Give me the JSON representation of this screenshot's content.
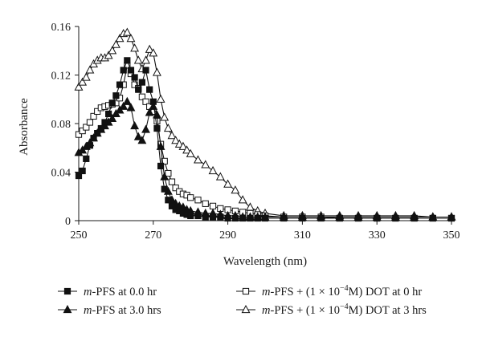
{
  "chart_data": {
    "type": "line",
    "title": "",
    "xlabel": "Wavelength (nm)",
    "ylabel": "Absorbance",
    "xlim": [
      250,
      350
    ],
    "ylim": [
      0,
      0.16
    ],
    "xticks": [
      "250",
      "270",
      "290",
      "310",
      "330",
      "350"
    ],
    "yticks": [
      "0",
      "0.04",
      "0.08",
      "0.12",
      "0.16"
    ],
    "grid": false,
    "legend_position": "bottom",
    "legend": [
      {
        "prefix": "m",
        "text": "-PFS at 0.0 hr"
      },
      {
        "prefix": "m",
        "text": "-PFS + (1 × 10",
        "sup": "−4",
        "suffix": "M) DOT at 0 hr"
      },
      {
        "prefix": "m",
        "text": "-PFS at 3.0 hrs"
      },
      {
        "prefix": "m",
        "text": "-PFS + (1 × 10",
        "sup": "−4",
        "suffix": "M) DOT at 3 hrs"
      }
    ],
    "series": [
      {
        "name": "m-PFS at 0.0 hr",
        "marker": "square-filled",
        "x": [
          250,
          251,
          252,
          253,
          254,
          255,
          256,
          257,
          258,
          259,
          260,
          261,
          262,
          263,
          264,
          265,
          266,
          267,
          268,
          269,
          270,
          271,
          272,
          273,
          274,
          275,
          276,
          277,
          278,
          279,
          280,
          282,
          284,
          286,
          288,
          290,
          292,
          294,
          296,
          298,
          300,
          305,
          310,
          315,
          320,
          325,
          330,
          335,
          340,
          345,
          350
        ],
        "y": [
          0.037,
          0.041,
          0.051,
          0.062,
          0.068,
          0.072,
          0.076,
          0.081,
          0.088,
          0.097,
          0.103,
          0.112,
          0.124,
          0.132,
          0.124,
          0.118,
          0.108,
          0.114,
          0.124,
          0.108,
          0.098,
          0.076,
          0.045,
          0.026,
          0.017,
          0.012,
          0.009,
          0.008,
          0.006,
          0.005,
          0.004,
          0.004,
          0.003,
          0.003,
          0.003,
          0.002,
          0.002,
          0.002,
          0.002,
          0.002,
          0.002,
          0.002,
          0.002,
          0.002,
          0.002,
          0.002,
          0.002,
          0.002,
          0.002,
          0.002,
          0.002
        ]
      },
      {
        "name": "m-PFS at 3.0 hrs",
        "marker": "triangle-filled",
        "x": [
          250,
          251,
          252,
          253,
          254,
          255,
          256,
          257,
          258,
          259,
          260,
          261,
          262,
          263,
          264,
          265,
          266,
          267,
          268,
          269,
          270,
          271,
          272,
          273,
          274,
          275,
          276,
          277,
          278,
          279,
          280,
          282,
          284,
          286,
          288,
          290,
          292,
          294,
          296,
          298,
          300,
          305,
          310,
          315,
          320,
          325,
          330,
          335,
          340,
          345,
          350
        ],
        "y": [
          0.056,
          0.058,
          0.061,
          0.064,
          0.068,
          0.072,
          0.075,
          0.078,
          0.081,
          0.084,
          0.088,
          0.091,
          0.094,
          0.098,
          0.093,
          0.078,
          0.069,
          0.066,
          0.075,
          0.089,
          0.094,
          0.087,
          0.061,
          0.036,
          0.024,
          0.017,
          0.014,
          0.012,
          0.011,
          0.009,
          0.008,
          0.007,
          0.006,
          0.006,
          0.005,
          0.004,
          0.004,
          0.003,
          0.003,
          0.003,
          0.003,
          0.003,
          0.003,
          0.003,
          0.003,
          0.003,
          0.003,
          0.003,
          0.003,
          0.003,
          0.003
        ]
      },
      {
        "name": "m-PFS + (1 × 10−4M) DOT at 0 hr",
        "marker": "square-open",
        "x": [
          250,
          251,
          252,
          253,
          254,
          255,
          256,
          257,
          258,
          259,
          260,
          261,
          262,
          263,
          264,
          265,
          266,
          267,
          268,
          269,
          270,
          271,
          272,
          273,
          274,
          275,
          276,
          277,
          278,
          279,
          280,
          282,
          284,
          286,
          288,
          290,
          292,
          294,
          296,
          298,
          300,
          305,
          310,
          315,
          320,
          325,
          330,
          335,
          340,
          345,
          350
        ],
        "y": [
          0.071,
          0.074,
          0.077,
          0.081,
          0.086,
          0.09,
          0.093,
          0.094,
          0.095,
          0.096,
          0.097,
          0.101,
          0.112,
          0.128,
          0.121,
          0.112,
          0.109,
          0.102,
          0.098,
          0.094,
          0.09,
          0.082,
          0.063,
          0.049,
          0.039,
          0.032,
          0.027,
          0.024,
          0.022,
          0.021,
          0.019,
          0.017,
          0.014,
          0.012,
          0.01,
          0.009,
          0.008,
          0.007,
          0.006,
          0.005,
          0.004,
          0.003,
          0.003,
          0.003,
          0.002,
          0.002,
          0.002,
          0.002,
          0.002,
          0.002,
          0.002
        ]
      },
      {
        "name": "m-PFS + (1 × 10−4M) DOT at 3 hrs",
        "marker": "triangle-open",
        "x": [
          250,
          251,
          252,
          253,
          254,
          255,
          256,
          257,
          258,
          259,
          260,
          261,
          262,
          263,
          264,
          265,
          266,
          267,
          268,
          269,
          270,
          271,
          272,
          273,
          274,
          275,
          276,
          277,
          278,
          279,
          280,
          282,
          284,
          286,
          288,
          290,
          292,
          294,
          296,
          298,
          300,
          305,
          310,
          315,
          320,
          325,
          330,
          335,
          340,
          345,
          350
        ],
        "y": [
          0.11,
          0.114,
          0.118,
          0.124,
          0.129,
          0.132,
          0.134,
          0.134,
          0.136,
          0.14,
          0.145,
          0.15,
          0.154,
          0.155,
          0.15,
          0.142,
          0.132,
          0.125,
          0.132,
          0.141,
          0.138,
          0.122,
          0.1,
          0.085,
          0.076,
          0.07,
          0.066,
          0.063,
          0.061,
          0.058,
          0.055,
          0.05,
          0.046,
          0.041,
          0.036,
          0.03,
          0.025,
          0.017,
          0.011,
          0.008,
          0.006,
          0.004,
          0.004,
          0.004,
          0.004,
          0.004,
          0.004,
          0.004,
          0.004,
          0.003,
          0.003
        ]
      }
    ]
  }
}
